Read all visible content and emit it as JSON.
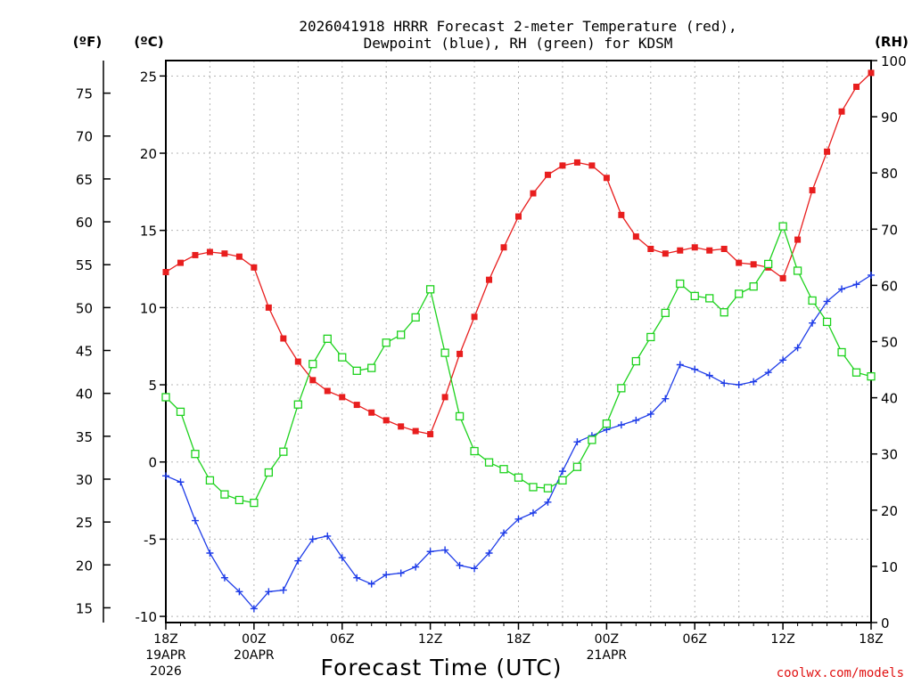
{
  "chart_data": {
    "type": "line",
    "title_line1": "2026041918 HRRR Forecast 2-meter Temperature (red),",
    "title_line2": "Dewpoint (blue), RH (green) for KDSM",
    "xlabel": "Forecast Time (UTC)",
    "credit": "coolwx.com/models",
    "units": {
      "fahrenheit": "(ºF)",
      "celsius": "(ºC)",
      "rh": "(RH)"
    },
    "ylim_c": [
      -10.4,
      26
    ],
    "ylim_rh": [
      0,
      100
    ],
    "hours": [
      0,
      1,
      2,
      3,
      4,
      5,
      6,
      7,
      8,
      9,
      10,
      11,
      12,
      13,
      14,
      15,
      16,
      17,
      18,
      19,
      20,
      21,
      22,
      23,
      24,
      25,
      26,
      27,
      28,
      29,
      30,
      31,
      32,
      33,
      34,
      35,
      36,
      37,
      38,
      39,
      40,
      41,
      42,
      43,
      44,
      45,
      46,
      47,
      48
    ],
    "c_ticks": [
      "-10",
      "-5",
      "0",
      "5",
      "10",
      "15",
      "20",
      "25"
    ],
    "f_ticks": [
      "15",
      "20",
      "25",
      "30",
      "35",
      "40",
      "45",
      "50",
      "55",
      "60",
      "65",
      "70",
      "75"
    ],
    "rh_ticks": [
      "0",
      "10",
      "20",
      "30",
      "40",
      "50",
      "60",
      "70",
      "80",
      "90",
      "100"
    ],
    "x_ticks": [
      {
        "hour": 0,
        "line1": "18Z",
        "line2": "19APR",
        "line3": "2026"
      },
      {
        "hour": 6,
        "line1": "00Z",
        "line2": "20APR",
        "line3": ""
      },
      {
        "hour": 12,
        "line1": "06Z",
        "line2": "",
        "line3": ""
      },
      {
        "hour": 18,
        "line1": "12Z",
        "line2": "",
        "line3": ""
      },
      {
        "hour": 24,
        "line1": "18Z",
        "line2": "",
        "line3": ""
      },
      {
        "hour": 30,
        "line1": "00Z",
        "line2": "21APR",
        "line3": ""
      },
      {
        "hour": 36,
        "line1": "06Z",
        "line2": "",
        "line3": ""
      },
      {
        "hour": 42,
        "line1": "12Z",
        "line2": "",
        "line3": ""
      },
      {
        "hour": 48,
        "line1": "18Z",
        "line2": "",
        "line3": ""
      }
    ],
    "series": [
      {
        "name": "Temperature",
        "axis": "C",
        "color": "#e81e1e",
        "marker": "filled-square",
        "values": [
          12.3,
          12.9,
          13.4,
          13.6,
          13.5,
          13.3,
          12.6,
          10.0,
          8.0,
          6.5,
          5.3,
          4.6,
          4.2,
          3.7,
          3.2,
          2.7,
          2.3,
          2.0,
          1.8,
          4.2,
          7.0,
          9.4,
          11.8,
          13.9,
          15.9,
          17.4,
          18.6,
          19.2,
          19.4,
          19.2,
          18.4,
          16.0,
          14.6,
          13.8,
          13.5,
          13.7,
          13.9,
          13.7,
          13.8,
          12.9,
          12.8,
          12.6,
          11.9,
          14.4,
          17.6,
          20.1,
          22.7,
          24.3,
          25.2
        ]
      },
      {
        "name": "Dewpoint",
        "axis": "C",
        "color": "#1e3ce8",
        "marker": "plus",
        "values": [
          -0.9,
          -1.3,
          -3.8,
          -5.9,
          -7.5,
          -8.4,
          -9.5,
          -8.4,
          -8.3,
          -6.4,
          -5.0,
          -4.8,
          -6.2,
          -7.5,
          -7.9,
          -7.3,
          -7.2,
          -6.8,
          -5.8,
          -5.7,
          -6.7,
          -6.9,
          -5.9,
          -4.6,
          -3.7,
          -3.3,
          -2.6,
          -0.6,
          1.3,
          1.7,
          2.1,
          2.4,
          2.7,
          3.1,
          4.1,
          6.3,
          6.0,
          5.6,
          5.1,
          5.0,
          5.2,
          5.8,
          6.6,
          7.4,
          9.0,
          10.4,
          11.2,
          11.5,
          12.1
        ]
      },
      {
        "name": "RH",
        "axis": "RH",
        "color": "#1ed21e",
        "marker": "open-square",
        "values": [
          40.1,
          37.5,
          30.0,
          25.3,
          22.8,
          21.8,
          21.3,
          26.7,
          30.4,
          38.8,
          46.0,
          50.5,
          47.2,
          44.8,
          45.3,
          49.8,
          51.2,
          54.3,
          59.3,
          48.0,
          36.7,
          30.5,
          28.5,
          27.3,
          25.8,
          24.1,
          23.9,
          25.3,
          27.7,
          32.5,
          35.4,
          41.7,
          46.5,
          50.8,
          55.1,
          60.3,
          58.1,
          57.7,
          55.2,
          58.5,
          59.8,
          63.8,
          70.5,
          62.6,
          57.3,
          53.5,
          48.1,
          44.5,
          43.8
        ]
      }
    ]
  }
}
